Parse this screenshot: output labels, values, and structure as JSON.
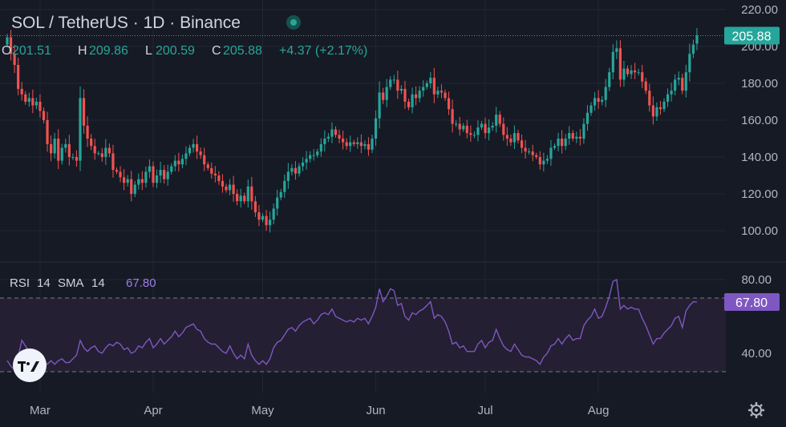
{
  "header": {
    "title": "SOL / TetherUS · 1D · Binance",
    "open_label": "O",
    "open_value": "201.51",
    "high_label": "H",
    "high_value": "209.86",
    "low_label": "L",
    "low_value": "200.59",
    "close_label": "C",
    "close_value": "205.88",
    "change": "+4.37 (+2.17%)"
  },
  "price_axis": {
    "ticks": [
      {
        "label": "220.00",
        "value": 220
      },
      {
        "label": "200.00",
        "value": 200
      },
      {
        "label": "180.00",
        "value": 180
      },
      {
        "label": "160.00",
        "value": 160
      },
      {
        "label": "140.00",
        "value": 140
      },
      {
        "label": "120.00",
        "value": 120
      },
      {
        "label": "100.00",
        "value": 100
      }
    ],
    "last_price_label": "205.88",
    "last_price": 205.88
  },
  "time_axis": {
    "labels": [
      {
        "label": "Mar",
        "day": 9
      },
      {
        "label": "Apr",
        "day": 40
      },
      {
        "label": "May",
        "day": 70
      },
      {
        "label": "Jun",
        "day": 101
      },
      {
        "label": "Jul",
        "day": 131
      },
      {
        "label": "Aug",
        "day": 162
      }
    ]
  },
  "rsi": {
    "label": "RSI",
    "length": "14",
    "sma_label": "SMA",
    "sma_length": "14",
    "value_label": "67.80",
    "current": 67.8,
    "upper_band": 70,
    "lower_band": 30,
    "axis_ticks": [
      {
        "label": "80.00",
        "value": 80
      },
      {
        "label": "40.00",
        "value": 40
      }
    ]
  },
  "colors": {
    "background": "#161a25",
    "up": "#26a69a",
    "down": "#ef5350",
    "rsi_line": "#7e57c2",
    "rsi_band": "#2a2438",
    "grid": "#232632",
    "tag_bg": "#7e57c2",
    "price_tag_bg": "#26a69a"
  },
  "icons": {
    "logo": "tradingview-logo-icon",
    "settings": "gear-icon"
  },
  "chart_data": {
    "type": "candlestick",
    "title": "SOL / TetherUS · 1D · Binance",
    "xlabel": "",
    "ylabel": "",
    "ylim": [
      90,
      222
    ],
    "x_ticks": [
      "Mar",
      "Apr",
      "May",
      "Jun",
      "Jul",
      "Aug"
    ],
    "series": [
      {
        "name": "SOL/USDT",
        "close": [
          205,
          196,
          190,
          177,
          174,
          170,
          172,
          168,
          170,
          165,
          160,
          147,
          142,
          150,
          138,
          145,
          147,
          140,
          140,
          138,
          172,
          157,
          150,
          146,
          142,
          142,
          140,
          145,
          142,
          133,
          132,
          129,
          126,
          128,
          120,
          125,
          128,
          126,
          132,
          135,
          126,
          130,
          133,
          128,
          132,
          135,
          138,
          136,
          139,
          142,
          145,
          147,
          143,
          141,
          136,
          134,
          131,
          130,
          127,
          124,
          122,
          125,
          120,
          116,
          119,
          116,
          124,
          116,
          110,
          106,
          108,
          103,
          106,
          112,
          118,
          121,
          127,
          132,
          134,
          131,
          135,
          137,
          139,
          141,
          141,
          143,
          147,
          150,
          151,
          155,
          152,
          150,
          148,
          146,
          148,
          147,
          148,
          146,
          147,
          144,
          150,
          161,
          175,
          171,
          178,
          182,
          182,
          176,
          177,
          170,
          167,
          174,
          172,
          176,
          178,
          180,
          183,
          174,
          176,
          175,
          172,
          166,
          158,
          158,
          155,
          157,
          153,
          152,
          152,
          156,
          158,
          153,
          156,
          157,
          163,
          158,
          152,
          150,
          148,
          153,
          149,
          145,
          143,
          143,
          141,
          140,
          136,
          138,
          139,
          145,
          146,
          150,
          146,
          150,
          153,
          150,
          151,
          150,
          158,
          164,
          168,
          172,
          170,
          171,
          178,
          186,
          197,
          199,
          182,
          188,
          185,
          187,
          186,
          186,
          181,
          176,
          168,
          162,
          167,
          166,
          170,
          174,
          176,
          182,
          183,
          176,
          186,
          196,
          201,
          206
        ],
        "open": [
          201,
          205,
          196,
          190,
          177,
          174,
          170,
          172,
          168,
          170,
          165,
          160,
          147,
          142,
          150,
          138,
          145,
          147,
          140,
          140,
          138,
          172,
          157,
          150,
          146,
          142,
          142,
          140,
          145,
          142,
          133,
          132,
          129,
          126,
          128,
          120,
          125,
          128,
          126,
          132,
          135,
          126,
          130,
          133,
          128,
          132,
          135,
          138,
          136,
          139,
          142,
          145,
          147,
          143,
          141,
          136,
          134,
          131,
          130,
          127,
          124,
          122,
          125,
          120,
          116,
          119,
          116,
          124,
          116,
          110,
          106,
          108,
          103,
          106,
          112,
          118,
          121,
          127,
          132,
          134,
          131,
          135,
          137,
          139,
          141,
          141,
          143,
          147,
          150,
          151,
          155,
          152,
          150,
          148,
          146,
          148,
          147,
          148,
          146,
          147,
          144,
          150,
          161,
          175,
          171,
          178,
          182,
          182,
          176,
          177,
          170,
          167,
          174,
          172,
          176,
          178,
          180,
          183,
          174,
          176,
          175,
          172,
          166,
          158,
          158,
          155,
          157,
          153,
          152,
          152,
          156,
          158,
          153,
          156,
          157,
          163,
          158,
          152,
          150,
          148,
          153,
          149,
          145,
          143,
          143,
          141,
          140,
          136,
          138,
          139,
          145,
          146,
          150,
          146,
          150,
          153,
          150,
          151,
          150,
          158,
          164,
          168,
          172,
          170,
          171,
          178,
          186,
          197,
          199,
          182,
          188,
          185,
          187,
          186,
          186,
          181,
          176,
          168,
          162,
          167,
          166,
          170,
          174,
          176,
          182,
          183,
          176,
          186,
          196,
          201.51
        ]
      },
      {
        "name": "RSI 14",
        "values": [
          36,
          33,
          31,
          38,
          47,
          44,
          41,
          39,
          40,
          37,
          35,
          34,
          36,
          34,
          36,
          37,
          35,
          35,
          37,
          39,
          47,
          43,
          41,
          43,
          44,
          41,
          40,
          43,
          45,
          44,
          46,
          45,
          42,
          43,
          40,
          41,
          44,
          43,
          46,
          48,
          43,
          45,
          48,
          45,
          47,
          49,
          52,
          49,
          51,
          54,
          55,
          56,
          53,
          52,
          48,
          46,
          45,
          45,
          43,
          41,
          40,
          44,
          40,
          37,
          39,
          37,
          45,
          39,
          36,
          34,
          36,
          34,
          37,
          43,
          46,
          47,
          50,
          53,
          54,
          52,
          55,
          57,
          58,
          59,
          56,
          58,
          61,
          62,
          61,
          64,
          60,
          59,
          58,
          57,
          58,
          57,
          59,
          58,
          59,
          56,
          60,
          65,
          75,
          68,
          71,
          75,
          74,
          66,
          67,
          60,
          58,
          62,
          61,
          63,
          64,
          66,
          68,
          59,
          61,
          60,
          57,
          52,
          45,
          46,
          43,
          44,
          41,
          41,
          41,
          45,
          47,
          43,
          46,
          47,
          53,
          48,
          44,
          42,
          41,
          45,
          42,
          39,
          38,
          38,
          37,
          36,
          34,
          38,
          40,
          44,
          45,
          48,
          45,
          48,
          50,
          47,
          48,
          48,
          55,
          58,
          60,
          64,
          59,
          60,
          65,
          71,
          79,
          80,
          64,
          66,
          64,
          65,
          64,
          64,
          59,
          55,
          50,
          45,
          48,
          48,
          51,
          53,
          55,
          59,
          60,
          54,
          63,
          66,
          68,
          67.8
        ]
      }
    ]
  }
}
